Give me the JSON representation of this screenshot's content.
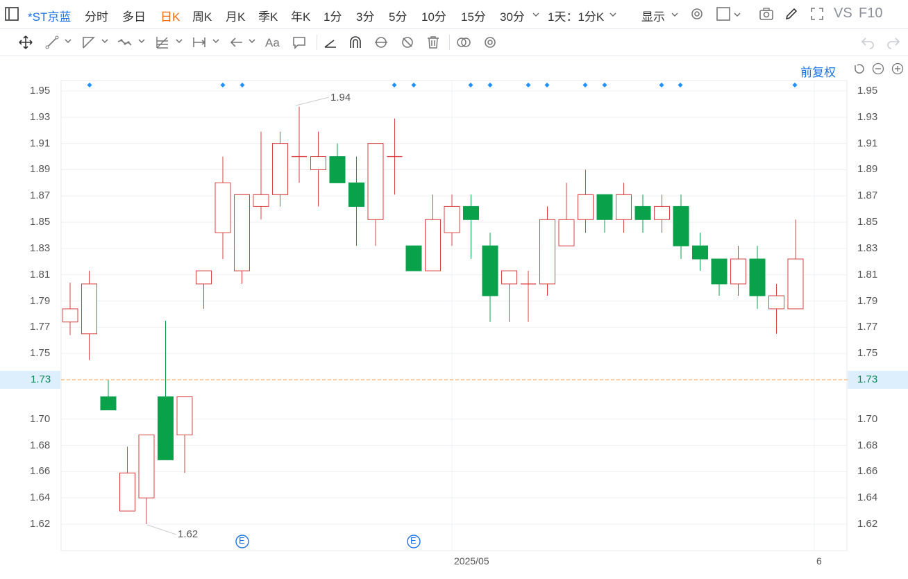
{
  "topbar": {
    "symbol": "*ST京蓝",
    "periods": [
      "分时",
      "多日",
      "日K",
      "周K",
      "月K",
      "季K",
      "年K",
      "1分",
      "3分",
      "5分",
      "10分",
      "15分",
      "30分"
    ],
    "active_period": "日K",
    "interval_select": "1天：1分K",
    "display_label": "显示",
    "vs_label": "VS",
    "f10_label": "F10"
  },
  "controls": {
    "adjust_label": "前复权"
  },
  "axis": {
    "y_ticks": [
      "1.95",
      "1.93",
      "1.91",
      "1.89",
      "1.87",
      "1.85",
      "1.83",
      "1.81",
      "1.79",
      "1.77",
      "1.75",
      "1.70",
      "1.68",
      "1.66",
      "1.64",
      "1.62"
    ],
    "current_price": "1.73",
    "x_ticks": [
      "2025/05",
      "6"
    ]
  },
  "annotations": {
    "high_label": "1.94",
    "low_label": "1.62",
    "event_marker": "E"
  },
  "colors": {
    "up": "#d94040",
    "down": "#0aa14b",
    "accent": "#1a73e8",
    "price_line": "#f0a050"
  },
  "chart_data": {
    "type": "candlestick",
    "ylim": [
      1.61,
      1.96
    ],
    "current_price": 1.73,
    "candles": [
      {
        "o": 1.774,
        "c": 1.784,
        "h": 1.804,
        "l": 1.764
      },
      {
        "o": 1.765,
        "c": 1.803,
        "h": 1.813,
        "l": 1.745
      },
      {
        "o": 1.717,
        "c": 1.707,
        "h": 1.73,
        "l": 1.707
      },
      {
        "o": 1.63,
        "c": 1.659,
        "h": 1.679,
        "l": 1.63
      },
      {
        "o": 1.64,
        "c": 1.688,
        "h": 1.688,
        "l": 1.62
      },
      {
        "o": 1.717,
        "c": 1.669,
        "h": 1.775,
        "l": 1.669
      },
      {
        "o": 1.688,
        "c": 1.717,
        "h": 1.717,
        "l": 1.659
      },
      {
        "o": 1.803,
        "c": 1.813,
        "h": 1.813,
        "l": 1.784
      },
      {
        "o": 1.842,
        "c": 1.88,
        "h": 1.9,
        "l": 1.822
      },
      {
        "o": 1.813,
        "c": 1.871,
        "h": 1.871,
        "l": 1.803
      },
      {
        "o": 1.862,
        "c": 1.871,
        "h": 1.919,
        "l": 1.852
      },
      {
        "o": 1.871,
        "c": 1.91,
        "h": 1.919,
        "l": 1.862
      },
      {
        "o": 1.9,
        "c": 1.9,
        "h": 1.938,
        "l": 1.88
      },
      {
        "o": 1.89,
        "c": 1.9,
        "h": 1.919,
        "l": 1.862
      },
      {
        "o": 1.9,
        "c": 1.88,
        "h": 1.91,
        "l": 1.88
      },
      {
        "o": 1.88,
        "c": 1.862,
        "h": 1.9,
        "l": 1.832
      },
      {
        "o": 1.852,
        "c": 1.91,
        "h": 1.91,
        "l": 1.832
      },
      {
        "o": 1.9,
        "c": 1.9,
        "h": 1.929,
        "l": 1.871
      },
      {
        "o": 1.832,
        "c": 1.813,
        "h": 1.832,
        "l": 1.813
      },
      {
        "o": 1.813,
        "c": 1.852,
        "h": 1.871,
        "l": 1.813
      },
      {
        "o": 1.842,
        "c": 1.862,
        "h": 1.871,
        "l": 1.832
      },
      {
        "o": 1.862,
        "c": 1.852,
        "h": 1.871,
        "l": 1.822
      },
      {
        "o": 1.832,
        "c": 1.794,
        "h": 1.842,
        "l": 1.774
      },
      {
        "o": 1.803,
        "c": 1.813,
        "h": 1.813,
        "l": 1.774
      },
      {
        "o": 1.803,
        "c": 1.803,
        "h": 1.813,
        "l": 1.774
      },
      {
        "o": 1.803,
        "c": 1.852,
        "h": 1.862,
        "l": 1.794
      },
      {
        "o": 1.832,
        "c": 1.852,
        "h": 1.88,
        "l": 1.832
      },
      {
        "o": 1.852,
        "c": 1.871,
        "h": 1.89,
        "l": 1.842
      },
      {
        "o": 1.871,
        "c": 1.852,
        "h": 1.871,
        "l": 1.842
      },
      {
        "o": 1.852,
        "c": 1.871,
        "h": 1.88,
        "l": 1.842
      },
      {
        "o": 1.862,
        "c": 1.852,
        "h": 1.871,
        "l": 1.842
      },
      {
        "o": 1.852,
        "c": 1.862,
        "h": 1.871,
        "l": 1.842
      },
      {
        "o": 1.862,
        "c": 1.832,
        "h": 1.871,
        "l": 1.822
      },
      {
        "o": 1.832,
        "c": 1.822,
        "h": 1.842,
        "l": 1.813
      },
      {
        "o": 1.822,
        "c": 1.803,
        "h": 1.822,
        "l": 1.794
      },
      {
        "o": 1.803,
        "c": 1.822,
        "h": 1.832,
        "l": 1.794
      },
      {
        "o": 1.822,
        "c": 1.794,
        "h": 1.832,
        "l": 1.784
      },
      {
        "o": 1.784,
        "c": 1.794,
        "h": 1.803,
        "l": 1.765
      },
      {
        "o": 1.784,
        "c": 1.822,
        "h": 1.852,
        "l": 1.784
      }
    ]
  }
}
